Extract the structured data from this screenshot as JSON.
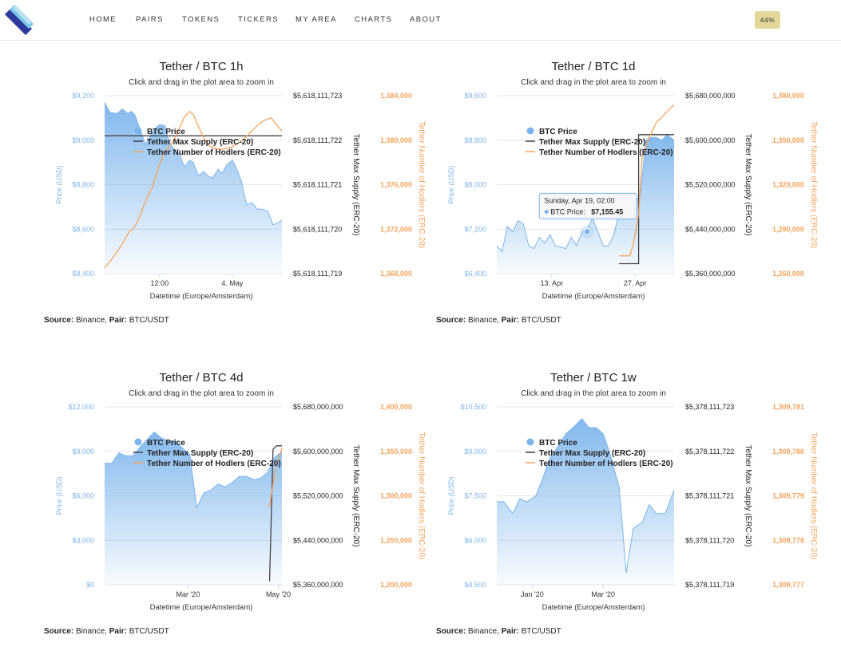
{
  "nav": {
    "items": [
      "HOME",
      "PAIRS",
      "TOKENS",
      "TICKERS",
      "MY AREA",
      "CHARTS",
      "ABOUT"
    ],
    "badge": "44%"
  },
  "colors": {
    "price": "#7cb5ec",
    "supply": "#434348",
    "holders": "#f7a35c",
    "badge": "#e3d79a"
  },
  "chart_data": [
    {
      "type": "area",
      "title": "Tether / BTC 1h",
      "subtitle": "Click and drag in the plot area to zoom in",
      "xlabel": "Datetime (Europe/Amsterdam)",
      "x_ticks": [
        {
          "label": "12:00",
          "pos": 0.31
        },
        {
          "label": "4. May",
          "pos": 0.72
        }
      ],
      "axes": {
        "price": {
          "title": "Price (USD)",
          "ticks": [
            "$8,400",
            "$8,600",
            "$8,800",
            "$9,000",
            "$9,200"
          ],
          "min": 8400,
          "max": 9200
        },
        "supply": {
          "title": "Tether Max Supply (ERC-20)",
          "ticks": [
            "$5,618,111,719",
            "$5,618,111,720",
            "$5,618,111,721",
            "$5,618,111,722",
            "$5,618,111,723"
          ],
          "min": 5618111719,
          "max": 5618111723
        },
        "holders": {
          "title": "Tether Number of Hodlers (ERC-20)",
          "ticks": [
            "1,368,000",
            "1,372,000",
            "1,376,000",
            "1,380,000",
            "1,384,000"
          ],
          "min": 1368000,
          "max": 1384000
        }
      },
      "series": [
        {
          "name": "BTC Price",
          "type": "area",
          "x": [
            0,
            0.03,
            0.07,
            0.1,
            0.13,
            0.15,
            0.17,
            0.2,
            0.23,
            0.25,
            0.28,
            0.31,
            0.34,
            0.36,
            0.39,
            0.42,
            0.45,
            0.48,
            0.5,
            0.53,
            0.56,
            0.58,
            0.61,
            0.64,
            0.66,
            0.69,
            0.72,
            0.74,
            0.77,
            0.8,
            0.83,
            0.86,
            0.89,
            0.92,
            0.95,
            0.98,
            1.0
          ],
          "values": [
            9170,
            9125,
            9120,
            9140,
            9120,
            9130,
            9115,
            9050,
            8980,
            9010,
            9050,
            9070,
            9065,
            9000,
            8960,
            8940,
            8880,
            8910,
            8900,
            8840,
            8860,
            8840,
            8830,
            8870,
            8850,
            8890,
            8910,
            8880,
            8820,
            8710,
            8720,
            8690,
            8690,
            8680,
            8620,
            8630,
            8640
          ]
        },
        {
          "name": "Tether Max Supply (ERC-20)",
          "type": "line",
          "x": [
            0,
            1
          ],
          "values": [
            5618111722.1,
            5618111722.1
          ]
        },
        {
          "name": "Tether Number of Hodlers (ERC-20)",
          "type": "line",
          "x": [
            0,
            0.05,
            0.1,
            0.14,
            0.17,
            0.2,
            0.23,
            0.27,
            0.31,
            0.34,
            0.36,
            0.39,
            0.42,
            0.45,
            0.48,
            0.5,
            0.53,
            0.56,
            0.59,
            0.63,
            0.67,
            0.72,
            0.77,
            0.81,
            0.86,
            0.9,
            0.94,
            0.97,
            1.0
          ],
          "values": [
            1368500,
            1369500,
            1370700,
            1371800,
            1372200,
            1373200,
            1374500,
            1375800,
            1377800,
            1379000,
            1379300,
            1380000,
            1381000,
            1382100,
            1382600,
            1382300,
            1381200,
            1380200,
            1379500,
            1379200,
            1379200,
            1379400,
            1379900,
            1380500,
            1381300,
            1381800,
            1382000,
            1381400,
            1380800
          ]
        }
      ]
    },
    {
      "type": "area",
      "title": "Tether / BTC 1d",
      "subtitle": "Click and drag in the plot area to zoom in",
      "xlabel": "Datetime (Europe/Amsterdam)",
      "x_ticks": [
        {
          "label": "13. Apr",
          "pos": 0.31
        },
        {
          "label": "27. Apr",
          "pos": 0.78
        }
      ],
      "axes": {
        "price": {
          "title": "Price (USD)",
          "ticks": [
            "$6,400",
            "$7,200",
            "$8,000",
            "$8,800",
            "$9,600"
          ],
          "min": 6400,
          "max": 9600
        },
        "supply": {
          "title": "Tether Max Supply (ERC-20)",
          "ticks": [
            "$5,360,000,000",
            "$5,440,000,000",
            "$5,520,000,000",
            "$5,600,000,000",
            "$5,680,000,000"
          ],
          "min": 5360000000,
          "max": 5680000000
        },
        "holders": {
          "title": "Tether Number of Hodlers (ERC-20)",
          "ticks": [
            "1,260,000",
            "1,290,000",
            "1,320,000",
            "1,350,000",
            "1,380,000"
          ],
          "min": 1260000,
          "max": 1380000
        }
      },
      "series": [
        {
          "name": "BTC Price",
          "type": "area",
          "x": [
            0,
            0.03,
            0.06,
            0.09,
            0.12,
            0.15,
            0.18,
            0.21,
            0.24,
            0.27,
            0.3,
            0.33,
            0.36,
            0.39,
            0.42,
            0.45,
            0.48,
            0.51,
            0.54,
            0.57,
            0.6,
            0.63,
            0.66,
            0.69,
            0.72,
            0.75,
            0.78,
            0.81,
            0.84,
            0.87,
            0.9,
            0.93,
            0.96,
            1.0
          ],
          "values": [
            6900,
            6800,
            7250,
            7150,
            7350,
            7300,
            6900,
            6850,
            7050,
            6950,
            7100,
            6900,
            6880,
            6850,
            7050,
            6900,
            7150,
            7200,
            7400,
            7155,
            6900,
            6900,
            7100,
            7500,
            7500,
            7550,
            7700,
            7800,
            8800,
            8850,
            8850,
            8800,
            8900,
            8800
          ]
        },
        {
          "name": "Tether Max Supply (ERC-20)",
          "type": "line",
          "x": [
            0.69,
            0.8,
            0.8,
            0.84,
            0.95,
            1.0
          ],
          "values": [
            5378000000,
            5378000000,
            5610000000,
            5610000000,
            5610000000,
            5610000000
          ]
        },
        {
          "name": "Tether Number of Hodlers (ERC-20)",
          "type": "line",
          "x": [
            0.69,
            0.75,
            0.77,
            0.8,
            0.82,
            0.86,
            0.9,
            0.95,
            1.0
          ],
          "values": [
            1272000,
            1272000,
            1280000,
            1300000,
            1338000,
            1352000,
            1362000,
            1368000,
            1374000
          ]
        }
      ],
      "tooltip": {
        "date": "Sunday, Apr 19, 02:00",
        "label": "BTC Price:",
        "value": "$7,155.45",
        "x_pos": 0.51,
        "price": 7155.45
      }
    },
    {
      "type": "area",
      "title": "Tether / BTC 4d",
      "subtitle": "Click and drag in the plot area to zoom in",
      "xlabel": "Datetime (Europe/Amsterdam)",
      "x_ticks": [
        {
          "label": "Mar '20",
          "pos": 0.47
        },
        {
          "label": "May '20",
          "pos": 0.98
        }
      ],
      "axes": {
        "price": {
          "title": "Price (USD)",
          "ticks": [
            "$0",
            "$3,000",
            "$6,000",
            "$9,000",
            "$12,000"
          ],
          "min": 0,
          "max": 12000
        },
        "supply": {
          "title": "Tether Max Supply (ERC-20)",
          "ticks": [
            "$5,360,000,000",
            "$5,440,000,000",
            "$5,520,000,000",
            "$5,600,000,000",
            "$5,680,000,000"
          ],
          "min": 5360000000,
          "max": 5680000000
        },
        "holders": {
          "title": "Tether Number of Hodlers (ERC-20)",
          "ticks": [
            "1,200,000",
            "1,250,000",
            "1,300,000",
            "1,350,000",
            "1,400,000"
          ],
          "min": 1200000,
          "max": 1400000
        }
      },
      "series": [
        {
          "name": "BTC Price",
          "type": "area",
          "x": [
            0,
            0.04,
            0.08,
            0.12,
            0.16,
            0.2,
            0.24,
            0.28,
            0.32,
            0.36,
            0.4,
            0.44,
            0.48,
            0.52,
            0.56,
            0.6,
            0.64,
            0.68,
            0.72,
            0.76,
            0.8,
            0.84,
            0.88,
            0.92,
            0.96,
            1.0
          ],
          "values": [
            8200,
            8200,
            8900,
            8700,
            8700,
            9300,
            9800,
            10300,
            9900,
            9700,
            9700,
            9200,
            8800,
            5200,
            6200,
            6400,
            6800,
            6600,
            6900,
            7300,
            7300,
            7100,
            7200,
            7600,
            8600,
            9000
          ]
        },
        {
          "name": "Tether Max Supply (ERC-20)",
          "type": "line",
          "x": [
            0.93,
            0.95,
            0.97,
            1.0
          ],
          "values": [
            5366000000,
            5604000000,
            5610000000,
            5610000000
          ]
        },
        {
          "name": "Tether Number of Hodlers (ERC-20)",
          "type": "line",
          "x": [
            0.93,
            0.96,
            1.0
          ],
          "values": [
            1287000,
            1327000,
            1354000
          ]
        }
      ]
    },
    {
      "type": "area",
      "title": "Tether / BTC 1w",
      "subtitle": "Click and drag in the plot area to zoom in",
      "xlabel": "Datetime (Europe/Amsterdam)",
      "x_ticks": [
        {
          "label": "Jan '20",
          "pos": 0.2
        },
        {
          "label": "Mar '20",
          "pos": 0.6
        }
      ],
      "axes": {
        "price": {
          "title": "Price (USD)",
          "ticks": [
            "$4,500",
            "$6,000",
            "$7,500",
            "$9,000",
            "$10,500"
          ],
          "min": 4500,
          "max": 10500
        },
        "supply": {
          "title": "Tether Max Supply (ERC-20)",
          "ticks": [
            "$5,378,111,719",
            "$5,378,111,720",
            "$5,378,111,721",
            "$5,378,111,722",
            "$5,378,111,723"
          ],
          "min": 5378111719,
          "max": 5378111723
        },
        "holders": {
          "title": "Tether Number of Hodlers (ERC-20)",
          "ticks": [
            "1,309,777",
            "1,309,778",
            "1,309,779",
            "1,309,780",
            "1,309,781"
          ],
          "min": 1309777,
          "max": 1309781
        }
      },
      "series": [
        {
          "name": "BTC Price",
          "type": "area",
          "x": [
            0,
            0.04,
            0.09,
            0.13,
            0.17,
            0.22,
            0.26,
            0.3,
            0.35,
            0.39,
            0.43,
            0.48,
            0.52,
            0.56,
            0.6,
            0.64,
            0.69,
            0.73,
            0.77,
            0.82,
            0.86,
            0.9,
            0.95,
            1.0
          ],
          "values": [
            7300,
            7300,
            6900,
            7400,
            7300,
            7500,
            8100,
            8800,
            9200,
            9600,
            9800,
            10100,
            9800,
            9800,
            9600,
            8900,
            7800,
            4900,
            6400,
            6600,
            7200,
            6900,
            6900,
            7700
          ]
        }
      ]
    }
  ],
  "sources": [
    {
      "label": "Source:",
      "value": "Binance,",
      "pair_label": "Pair:",
      "pair": "BTC/USDT"
    },
    {
      "label": "Source:",
      "value": "Binance,",
      "pair_label": "Pair:",
      "pair": "BTC/USDT"
    },
    {
      "label": "Source:",
      "value": "Binance,",
      "pair_label": "Pair:",
      "pair": "BTC/USDT"
    },
    {
      "label": "Source:",
      "value": "Binance,",
      "pair_label": "Pair:",
      "pair": "BTC/USDT"
    }
  ]
}
